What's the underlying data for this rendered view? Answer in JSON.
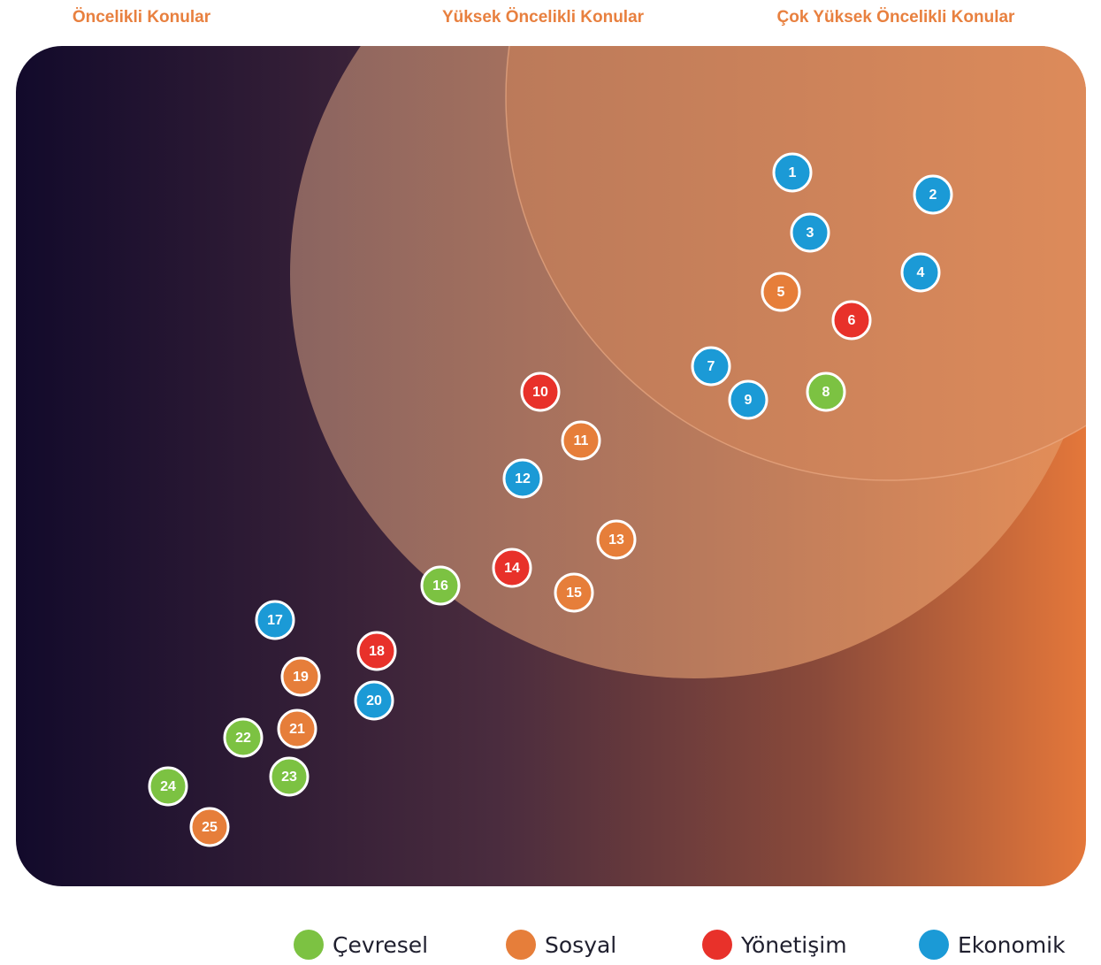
{
  "header": {
    "columns": [
      "Öncelikli Konular",
      "Yüksek Öncelikli Konular",
      "Çok Yüksek Öncelikli Konular"
    ]
  },
  "groups": [
    {
      "name": "Çevresel",
      "color": "#7cc242",
      "nodes": [
        "8",
        "16",
        "22",
        "23",
        "24"
      ]
    },
    {
      "name": "Sosyal",
      "color": "#e67e3a",
      "nodes": [
        "5",
        "11",
        "13",
        "15",
        "19",
        "21",
        "25"
      ]
    },
    {
      "name": "Yönetişim",
      "color": "#e8312a",
      "nodes": [
        "6",
        "10",
        "14",
        "18"
      ]
    },
    {
      "name": "Ekonomik",
      "color": "#1b9ad6",
      "nodes": [
        "1",
        "2",
        "3",
        "4",
        "7",
        "9",
        "12",
        "17",
        "20"
      ]
    }
  ]
}
